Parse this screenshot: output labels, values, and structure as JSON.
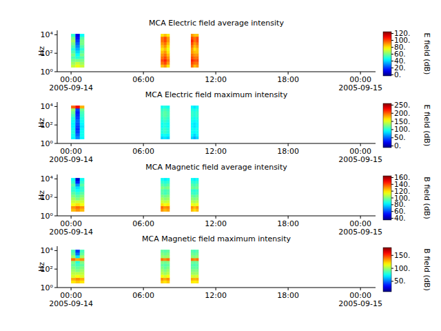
{
  "chart_data": [
    {
      "type": "heatmap",
      "title": "MCA  Electric field average intensity",
      "ylabel": "Hz",
      "log": "y",
      "xlim": [
        "2005-09-13T22:51",
        "2005-09-15T01:15"
      ],
      "xticks": [
        {
          "value": "2005-09-14T00:00",
          "label": "00:00\n2005-09-14"
        },
        {
          "value": "2005-09-14T06:00",
          "label": "06:00"
        },
        {
          "value": "2005-09-14T12:00",
          "label": "12:00"
        },
        {
          "value": "2005-09-14T18:00",
          "label": "18:00"
        },
        {
          "value": "2005-09-15T00:00",
          "label": "00:00\n2005-09-15"
        }
      ],
      "ylim": [
        1,
        30000
      ],
      "yticks": [
        {
          "value": 1,
          "label": "10⁰"
        },
        {
          "value": 100,
          "label": "10²"
        },
        {
          "value": 10000,
          "label": "10⁴"
        }
      ],
      "y_edges": [
        3,
        6,
        12,
        25,
        50,
        100,
        200,
        400,
        800,
        1600,
        3200,
        6400,
        12500
      ],
      "bursts": [
        {
          "start": "2005-09-14T00:00",
          "end": "2005-09-14T01:05",
          "values": [
            [
              70,
              65,
              60,
              55,
              60,
              55,
              50,
              55,
              60,
              65,
              60,
              50
            ],
            [
              75,
              70,
              60,
              50,
              45,
              40,
              35,
              30,
              25,
              20,
              15,
              10
            ],
            [
              70,
              65,
              60,
              55,
              60,
              55,
              50,
              55,
              60,
              60,
              55,
              45
            ]
          ]
        },
        {
          "start": "2005-09-14T07:26",
          "end": "2005-09-14T08:10",
          "values": [
            [
              85,
              95,
              100,
              95,
              90,
              85,
              80,
              85,
              90,
              95,
              95,
              80
            ],
            [
              90,
              100,
              105,
              100,
              95,
              90,
              85,
              90,
              95,
              100,
              100,
              85
            ],
            [
              80,
              90,
              95,
              90,
              85,
              80,
              75,
              80,
              85,
              90,
              90,
              80
            ]
          ]
        },
        {
          "start": "2005-09-14T09:56",
          "end": "2005-09-14T10:34",
          "values": [
            [
              95,
              100,
              105,
              100,
              95,
              90,
              90,
              95,
              100,
              105,
              100,
              90
            ],
            [
              85,
              95,
              100,
              95,
              90,
              85,
              80,
              85,
              90,
              95,
              95,
              85
            ],
            [
              90,
              95,
              100,
              95,
              90,
              85,
              85,
              90,
              95,
              100,
              100,
              85
            ]
          ]
        }
      ],
      "colorbar": {
        "label": "E field (dB)",
        "range": [
          -3,
          125
        ],
        "ticks": [
          {
            "value": 0,
            "label": "0."
          },
          {
            "value": 20,
            "label": "20."
          },
          {
            "value": 40,
            "label": "40."
          },
          {
            "value": 60,
            "label": "60."
          },
          {
            "value": 80,
            "label": "80."
          },
          {
            "value": 100,
            "label": "100."
          },
          {
            "value": 120,
            "label": "120."
          }
        ]
      }
    },
    {
      "type": "heatmap",
      "title": "MCA  Electric field maximum intensity",
      "ylabel": "Hz",
      "log": "y",
      "xlim": [
        "2005-09-13T22:51",
        "2005-09-15T01:15"
      ],
      "xticks": [
        {
          "value": "2005-09-14T00:00",
          "label": "00:00\n2005-09-14"
        },
        {
          "value": "2005-09-14T06:00",
          "label": "06:00"
        },
        {
          "value": "2005-09-14T12:00",
          "label": "12:00"
        },
        {
          "value": "2005-09-14T18:00",
          "label": "18:00"
        },
        {
          "value": "2005-09-15T00:00",
          "label": "00:00\n2005-09-15"
        }
      ],
      "ylim": [
        1,
        30000
      ],
      "yticks": [
        {
          "value": 1,
          "label": "10⁰"
        },
        {
          "value": 100,
          "label": "10²"
        },
        {
          "value": 10000,
          "label": "10⁴"
        }
      ],
      "y_edges": [
        3,
        6,
        12,
        25,
        50,
        100,
        200,
        400,
        800,
        1600,
        3200,
        6400,
        12500
      ],
      "bursts": [
        {
          "start": "2005-09-14T00:00",
          "end": "2005-09-14T01:05",
          "values": [
            [
              90,
              95,
              100,
              95,
              90,
              90,
              95,
              100,
              110,
              120,
              130,
              200
            ],
            [
              60,
              50,
              40,
              35,
              40,
              45,
              50,
              40,
              35,
              30,
              40,
              230
            ],
            [
              90,
              95,
              95,
              90,
              85,
              90,
              95,
              100,
              105,
              110,
              120,
              180
            ]
          ]
        },
        {
          "start": "2005-09-14T07:26",
          "end": "2005-09-14T08:10",
          "values": [
            [
              80,
              90,
              100,
              100,
              95,
              95,
              100,
              105,
              110,
              110,
              105,
              95
            ],
            [
              85,
              95,
              105,
              105,
              100,
              100,
              105,
              110,
              115,
              115,
              110,
              100
            ],
            [
              80,
              90,
              100,
              100,
              95,
              95,
              100,
              105,
              110,
              110,
              105,
              95
            ]
          ]
        },
        {
          "start": "2005-09-14T09:56",
          "end": "2005-09-14T10:34",
          "values": [
            [
              80,
              90,
              95,
              95,
              90,
              90,
              95,
              100,
              105,
              105,
              100,
              90
            ],
            [
              70,
              80,
              90,
              90,
              85,
              85,
              90,
              95,
              100,
              100,
              95,
              85
            ],
            [
              80,
              90,
              95,
              95,
              90,
              90,
              95,
              100,
              105,
              105,
              100,
              90
            ]
          ]
        }
      ],
      "colorbar": {
        "label": "E field (dB)",
        "range": [
          -10,
          260
        ],
        "ticks": [
          {
            "value": 0,
            "label": "0."
          },
          {
            "value": 50,
            "label": "50."
          },
          {
            "value": 100,
            "label": "100."
          },
          {
            "value": 150,
            "label": "150."
          },
          {
            "value": 200,
            "label": "200."
          },
          {
            "value": 250,
            "label": "250."
          }
        ]
      }
    },
    {
      "type": "heatmap",
      "title": "MCA  Magnetic field average intensity",
      "ylabel": "Hz",
      "log": "y",
      "xlim": [
        "2005-09-13T22:51",
        "2005-09-15T01:15"
      ],
      "xticks": [
        {
          "value": "2005-09-14T00:00",
          "label": "00:00\n2005-09-14"
        },
        {
          "value": "2005-09-14T06:00",
          "label": "06:00"
        },
        {
          "value": "2005-09-14T12:00",
          "label": "12:00"
        },
        {
          "value": "2005-09-14T18:00",
          "label": "18:00"
        },
        {
          "value": "2005-09-15T00:00",
          "label": "00:00\n2005-09-15"
        }
      ],
      "ylim": [
        1,
        30000
      ],
      "yticks": [
        {
          "value": 1,
          "label": "10⁰"
        },
        {
          "value": 100,
          "label": "10²"
        },
        {
          "value": 10000,
          "label": "10⁴"
        }
      ],
      "y_edges": [
        3,
        6,
        12,
        25,
        50,
        100,
        200,
        400,
        800,
        1600,
        3200,
        6400,
        12500
      ],
      "bursts": [
        {
          "start": "2005-09-14T00:00",
          "end": "2005-09-14T01:05",
          "values": [
            [
              125,
              130,
              115,
              110,
              105,
              100,
              95,
              90,
              90,
              95,
              90,
              85
            ],
            [
              130,
              135,
              120,
              110,
              100,
              95,
              90,
              85,
              80,
              70,
              55,
              45
            ],
            [
              125,
              130,
              115,
              110,
              105,
              100,
              95,
              90,
              90,
              95,
              90,
              85
            ]
          ]
        },
        {
          "start": "2005-09-14T07:26",
          "end": "2005-09-14T08:10",
          "values": [
            [
              130,
              135,
              120,
              110,
              105,
              100,
              95,
              95,
              100,
              95,
              90,
              85
            ],
            [
              125,
              130,
              115,
              108,
              102,
              98,
              92,
              92,
              98,
              92,
              88,
              82
            ],
            [
              128,
              132,
              118,
              110,
              104,
              100,
              95,
              94,
              100,
              95,
              90,
              85
            ]
          ]
        },
        {
          "start": "2005-09-14T09:56",
          "end": "2005-09-14T10:34",
          "values": [
            [
              125,
              130,
              115,
              108,
              102,
              98,
              92,
              90,
              98,
              95,
              90,
              85
            ],
            [
              120,
              125,
              112,
              105,
              100,
              95,
              90,
              88,
              96,
              92,
              88,
              82
            ],
            [
              125,
              130,
              115,
              108,
              102,
              98,
              92,
              90,
              98,
              95,
              90,
              85
            ]
          ]
        }
      ],
      "colorbar": {
        "label": "B field (dB)",
        "range": [
          35,
          165
        ],
        "ticks": [
          {
            "value": 40,
            "label": "40."
          },
          {
            "value": 60,
            "label": "60."
          },
          {
            "value": 80,
            "label": "80."
          },
          {
            "value": 100,
            "label": "100."
          },
          {
            "value": 120,
            "label": "120."
          },
          {
            "value": 140,
            "label": "140."
          },
          {
            "value": 160,
            "label": "160."
          }
        ]
      }
    },
    {
      "type": "heatmap",
      "title": "MCA  Magnetic field maximum intensity",
      "ylabel": "Hz",
      "log": "y",
      "xlim": [
        "2005-09-13T22:51",
        "2005-09-15T01:15"
      ],
      "xticks": [
        {
          "value": "2005-09-14T00:00",
          "label": "00:00\n2005-09-14"
        },
        {
          "value": "2005-09-14T06:00",
          "label": "06:00"
        },
        {
          "value": "2005-09-14T12:00",
          "label": "12:00"
        },
        {
          "value": "2005-09-14T18:00",
          "label": "18:00"
        },
        {
          "value": "2005-09-15T00:00",
          "label": "00:00\n2005-09-15"
        }
      ],
      "ylim": [
        1,
        30000
      ],
      "yticks": [
        {
          "value": 1,
          "label": "10⁰"
        },
        {
          "value": 100,
          "label": "10²"
        },
        {
          "value": 10000,
          "label": "10⁴"
        }
      ],
      "y_edges": [
        3,
        6,
        12,
        25,
        50,
        100,
        200,
        400,
        800,
        1600,
        3200,
        6400,
        12500
      ],
      "bursts": [
        {
          "start": "2005-09-14T00:00",
          "end": "2005-09-14T01:05",
          "values": [
            [
              120,
              130,
              110,
              105,
              100,
              95,
              90,
              95,
              140,
              100,
              90,
              85
            ],
            [
              125,
              135,
              115,
              105,
              95,
              90,
              85,
              80,
              130,
              70,
              50,
              40
            ],
            [
              120,
              130,
              110,
              105,
              100,
              95,
              90,
              95,
              135,
              100,
              90,
              85
            ]
          ]
        },
        {
          "start": "2005-09-14T07:26",
          "end": "2005-09-14T08:10",
          "values": [
            [
              125,
              135,
              115,
              105,
              100,
              95,
              90,
              95,
              140,
              100,
              95,
              90
            ],
            [
              120,
              130,
              110,
              100,
              95,
              90,
              88,
              92,
              135,
              98,
              92,
              88
            ],
            [
              125,
              135,
              115,
              105,
              100,
              95,
              90,
              95,
              140,
              100,
              95,
              90
            ]
          ]
        },
        {
          "start": "2005-09-14T09:56",
          "end": "2005-09-14T10:34",
          "values": [
            [
              120,
              130,
              110,
              100,
              95,
              90,
              88,
              92,
              140,
              98,
              92,
              88
            ],
            [
              118,
              128,
              108,
              100,
              95,
              90,
              86,
              90,
              135,
              95,
              90,
              85
            ],
            [
              120,
              130,
              110,
              100,
              95,
              90,
              88,
              92,
              140,
              98,
              92,
              88
            ]
          ]
        }
      ],
      "colorbar": {
        "label": "B field (dB)",
        "range": [
          10,
          180
        ],
        "ticks": [
          {
            "value": 50,
            "label": "50."
          },
          {
            "value": 100,
            "label": "100."
          },
          {
            "value": 150,
            "label": "150."
          }
        ]
      }
    }
  ]
}
